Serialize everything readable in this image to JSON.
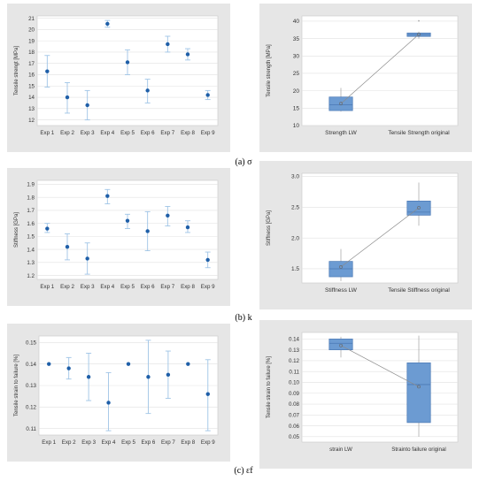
{
  "colors": {
    "panel_bg": "#e6e6e6",
    "plot_bg": "#ffffff",
    "grid": "#e1e1e1",
    "point": "#1f5fa8",
    "errorbar": "#9fc4e6",
    "box_fill": "#6c9bd2",
    "box_edge": "#4a78b4",
    "connect_line": "#8c8c8c",
    "text": "#333333"
  },
  "captions": [
    {
      "label": "(a)",
      "symbol": "σ"
    },
    {
      "label": "(b)",
      "symbol": "k"
    },
    {
      "label": "(c)",
      "symbol": "εf"
    }
  ],
  "chart_data": [
    {
      "id": "a-left",
      "type": "scatter",
      "ylabel": "Tensile strengt [MPa]",
      "xlabel": "",
      "categories": [
        "Exp 1",
        "Exp 2",
        "Exp 3",
        "Exp 4",
        "Exp 5",
        "Exp 6",
        "Exp 7",
        "Exp 8",
        "Exp 9"
      ],
      "values": [
        16.3,
        14.0,
        13.3,
        20.5,
        17.1,
        14.6,
        18.7,
        17.8,
        14.2
      ],
      "err_low": [
        14.9,
        12.6,
        12.0,
        20.2,
        16.0,
        13.5,
        18.0,
        17.3,
        13.8
      ],
      "err_high": [
        17.7,
        15.3,
        14.6,
        20.8,
        18.2,
        15.6,
        19.4,
        18.3,
        14.6
      ],
      "ylim": [
        11.5,
        21.2
      ],
      "yticks": [
        12,
        13,
        14,
        15,
        16,
        17,
        18,
        19,
        20,
        21
      ],
      "grid": true
    },
    {
      "id": "a-right",
      "type": "box",
      "ylabel": "Tensile strength [MPa]",
      "xlabel": "",
      "categories": [
        "Strength LW",
        "Tensile Strength original"
      ],
      "boxes": [
        {
          "min": 14.0,
          "q1": 14.3,
          "median": 16.0,
          "q3": 18.2,
          "max": 20.8,
          "mean": 16.3,
          "outliers": []
        },
        {
          "min": 35.0,
          "q1": 35.6,
          "median": 36.1,
          "q3": 36.6,
          "max": 37.0,
          "mean": 36.2,
          "outliers": [
            39.8
          ]
        }
      ],
      "ylim": [
        10,
        41.5
      ],
      "yticks": [
        10,
        15,
        20,
        25,
        30,
        35,
        40
      ],
      "grid": true
    },
    {
      "id": "b-left",
      "type": "scatter",
      "ylabel": "Stiffness [GPa]",
      "xlabel": "",
      "categories": [
        "Exp 1",
        "Exp 2",
        "Exp 3",
        "Exp 4",
        "Exp 5",
        "Exp 6",
        "Exp 7",
        "Exp 8",
        "Exp 9"
      ],
      "values": [
        1.56,
        1.42,
        1.33,
        1.81,
        1.62,
        1.54,
        1.66,
        1.57,
        1.32
      ],
      "err_low": [
        1.53,
        1.32,
        1.21,
        1.75,
        1.56,
        1.39,
        1.58,
        1.53,
        1.26
      ],
      "err_high": [
        1.6,
        1.52,
        1.45,
        1.86,
        1.67,
        1.69,
        1.73,
        1.62,
        1.38
      ],
      "ylim": [
        1.17,
        1.93
      ],
      "yticks": [
        1.2,
        1.3,
        1.4,
        1.5,
        1.6,
        1.7,
        1.8,
        1.9
      ],
      "grid": true
    },
    {
      "id": "b-right",
      "type": "box",
      "ylabel": "Stiffness [GPa]",
      "xlabel": "",
      "categories": [
        "Stiffness LW",
        "Tensile Stiffness original"
      ],
      "boxes": [
        {
          "min": 1.3,
          "q1": 1.37,
          "median": 1.5,
          "q3": 1.62,
          "max": 1.82,
          "mean": 1.53,
          "outliers": []
        },
        {
          "min": 2.2,
          "q1": 2.37,
          "median": 2.42,
          "q3": 2.6,
          "max": 2.9,
          "mean": 2.49,
          "outliers": []
        }
      ],
      "ylim": [
        1.27,
        3.05
      ],
      "yticks": [
        1.5,
        2.0,
        2.5,
        3.0
      ],
      "ytick_labels": [
        "1.5",
        "2.0",
        "2.5",
        "3.0"
      ],
      "grid": true
    },
    {
      "id": "c-left",
      "type": "scatter",
      "ylabel": "Tensile strain to failure [%]",
      "xlabel": "",
      "categories": [
        "Exp 1",
        "Exp 2",
        "Exp 3",
        "Exp 4",
        "Exp 5",
        "Exp 6",
        "Exp 7",
        "Exp 8",
        "Exp 9"
      ],
      "values": [
        0.14,
        0.138,
        0.134,
        0.122,
        0.14,
        0.134,
        0.135,
        0.14,
        0.126
      ],
      "err_low": [
        0.14,
        0.133,
        0.123,
        0.109,
        0.14,
        0.117,
        0.124,
        0.14,
        0.109
      ],
      "err_high": [
        0.14,
        0.143,
        0.145,
        0.136,
        0.14,
        0.151,
        0.146,
        0.14,
        0.142
      ],
      "ylim": [
        0.107,
        0.153
      ],
      "yticks": [
        0.11,
        0.12,
        0.13,
        0.14,
        0.15
      ],
      "ytick_labels": [
        "0.11",
        "0.12",
        "0.13",
        "0.14",
        "0.15"
      ],
      "grid": true
    },
    {
      "id": "c-right",
      "type": "box",
      "ylabel": "Tensile strain to failure [%]",
      "xlabel": "",
      "categories": [
        "strain LW",
        "Straintо failure original"
      ],
      "boxes": [
        {
          "min": 0.123,
          "q1": 0.13,
          "median": 0.136,
          "q3": 0.14,
          "max": 0.142,
          "mean": 0.134,
          "outliers": []
        },
        {
          "min": 0.05,
          "q1": 0.063,
          "median": 0.098,
          "q3": 0.118,
          "max": 0.143,
          "mean": 0.096,
          "outliers": []
        }
      ],
      "ylim": [
        0.045,
        0.146
      ],
      "yticks": [
        0.05,
        0.06,
        0.07,
        0.08,
        0.09,
        0.1,
        0.11,
        0.12,
        0.13,
        0.14
      ],
      "ytick_labels": [
        "0.05",
        "0.06",
        "0.07",
        "0.08",
        "0.09",
        "0.10",
        "0.11",
        "0.12",
        "0.13",
        "0.14"
      ],
      "grid": true
    }
  ]
}
